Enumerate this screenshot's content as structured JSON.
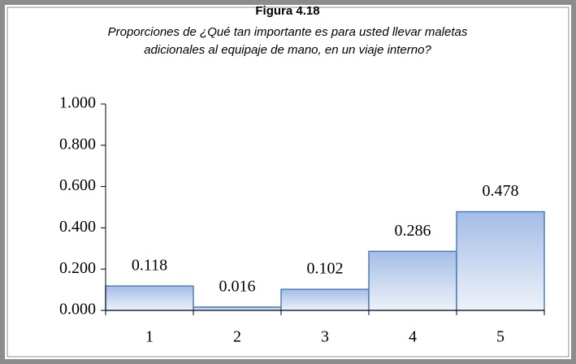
{
  "chart_data": {
    "type": "bar",
    "title": "Figura 4.18",
    "subtitle": [
      "Proporciones de ¿Qué tan importante es para usted llevar maletas",
      "adicionales al equipaje de mano, en un viaje interno?"
    ],
    "categories": [
      "1",
      "2",
      "3",
      "4",
      "5"
    ],
    "values": [
      0.118,
      0.016,
      0.102,
      0.286,
      0.478
    ],
    "color": "#a3bde6",
    "ylim": [
      0,
      1
    ],
    "yticks": [
      {
        "value": 0,
        "label": "0.000"
      },
      {
        "value": 0.2,
        "label": "0.200"
      },
      {
        "value": 0.4,
        "label": "0.400"
      },
      {
        "value": 0.6,
        "label": "0.600"
      },
      {
        "value": 0.8,
        "label": "0.800"
      },
      {
        "value": 1,
        "label": "1.000"
      }
    ],
    "grid": false
  }
}
